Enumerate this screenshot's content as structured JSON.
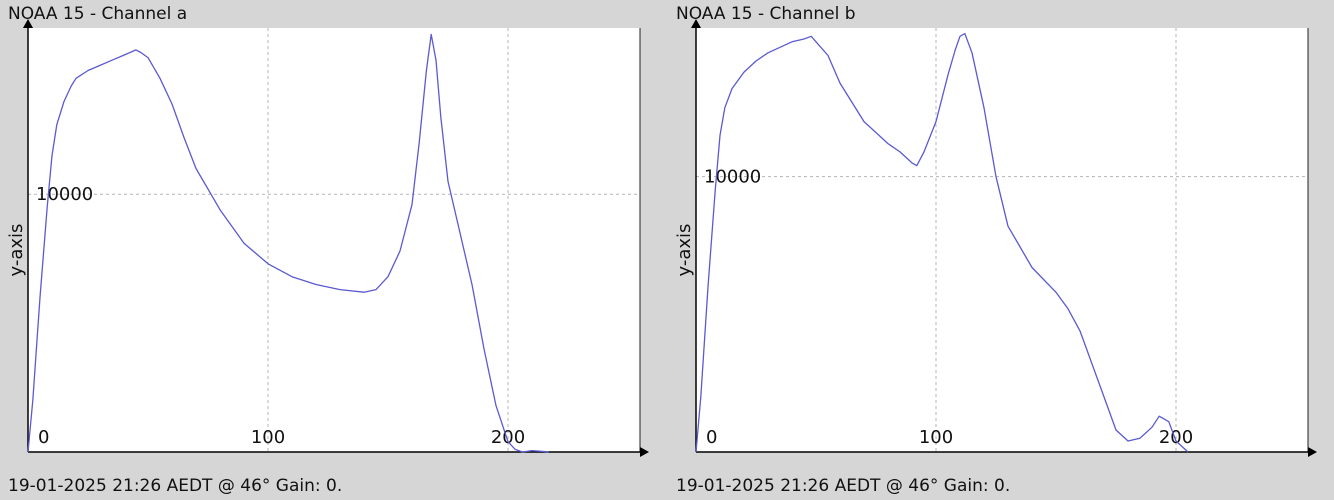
{
  "panels": [
    {
      "title": "NOAA 15 - Channel a",
      "footer": "19-01-2025 21:26 AEDT @ 46° Gain: 0.",
      "ylabel": "y-axis"
    },
    {
      "title": "NOAA 15 - Channel b",
      "footer": "19-01-2025 21:26 AEDT @ 46° Gain: 0.",
      "ylabel": "y-axis"
    }
  ],
  "chart_data": [
    {
      "type": "line",
      "title": "NOAA 15 - Channel a",
      "xlabel": "",
      "ylabel": "y-axis",
      "xlim": [
        0,
        255
      ],
      "ylim": [
        0,
        16450
      ],
      "x_ticks": [
        0,
        100,
        200
      ],
      "y_ticks": [
        10000
      ],
      "grid": true,
      "line_color": "#5a5ad2",
      "x": [
        0,
        2,
        5,
        8,
        10,
        12,
        15,
        18,
        20,
        25,
        30,
        35,
        40,
        45,
        47,
        50,
        55,
        60,
        65,
        70,
        80,
        90,
        100,
        110,
        120,
        130,
        140,
        145,
        150,
        155,
        160,
        163,
        166,
        168,
        170,
        172,
        175,
        180,
        185,
        190,
        195,
        200,
        203,
        206,
        210,
        215,
        217
      ],
      "y": [
        0,
        2000,
        6000,
        9500,
        11500,
        12700,
        13600,
        14200,
        14500,
        14800,
        15000,
        15200,
        15400,
        15600,
        15500,
        15300,
        14500,
        13500,
        12200,
        11000,
        9400,
        8100,
        7300,
        6800,
        6500,
        6300,
        6200,
        6300,
        6800,
        7800,
        9600,
        12000,
        14800,
        16200,
        15200,
        13000,
        10500,
        8500,
        6500,
        4000,
        1800,
        400,
        100,
        0,
        50,
        20,
        0
      ]
    },
    {
      "type": "line",
      "title": "NOAA 15 - Channel b",
      "xlabel": "",
      "ylabel": "y-axis",
      "xlim": [
        0,
        255
      ],
      "ylim": [
        0,
        15400
      ],
      "x_ticks": [
        0,
        100,
        200
      ],
      "y_ticks": [
        10000
      ],
      "grid": true,
      "line_color": "#5a5ad2",
      "x": [
        0,
        2,
        5,
        8,
        10,
        12,
        15,
        20,
        25,
        30,
        35,
        40,
        45,
        48,
        50,
        55,
        60,
        70,
        80,
        85,
        90,
        92,
        95,
        100,
        105,
        108,
        110,
        112,
        115,
        120,
        125,
        130,
        140,
        150,
        155,
        160,
        170,
        175,
        180,
        185,
        190,
        193,
        197,
        200,
        205
      ],
      "y": [
        0,
        2000,
        6000,
        9500,
        11500,
        12500,
        13200,
        13800,
        14200,
        14500,
        14700,
        14900,
        15000,
        15100,
        14900,
        14400,
        13400,
        12000,
        11200,
        10900,
        10500,
        10400,
        10900,
        12000,
        13700,
        14600,
        15100,
        15200,
        14500,
        12500,
        10000,
        8200,
        6700,
        5800,
        5200,
        4400,
        2000,
        800,
        400,
        500,
        900,
        1300,
        1100,
        400,
        0
      ]
    }
  ]
}
